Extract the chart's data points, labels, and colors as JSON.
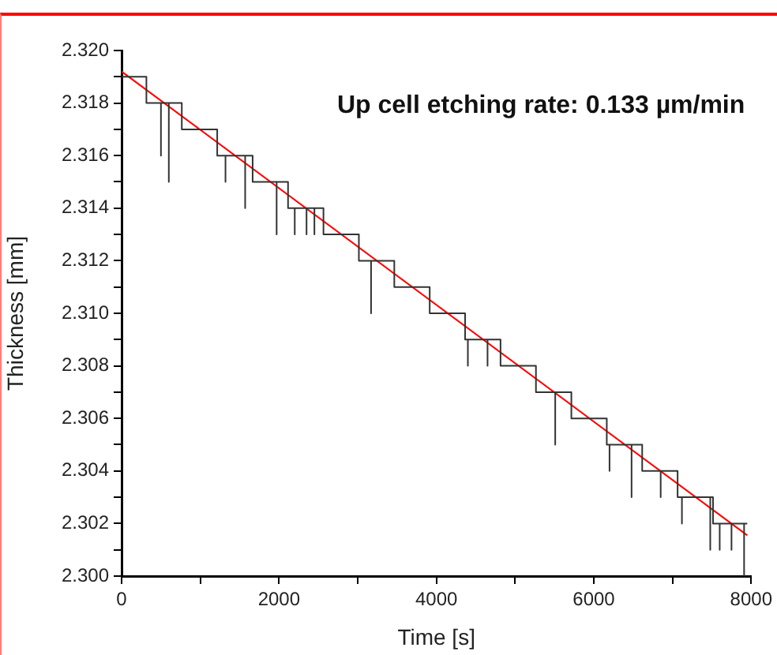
{
  "chart_data": {
    "type": "line",
    "xlabel": "Time [s]",
    "ylabel": "Thickness [mm]",
    "annotations": [
      "Up cell etching rate: 0.133 µm/min"
    ],
    "xlim": [
      0,
      8000
    ],
    "ylim": [
      2.3,
      2.32
    ],
    "xticks": [
      0,
      {
        "value": 1000,
        "label": null
      },
      2000,
      {
        "value": 3000,
        "label": null
      },
      4000,
      {
        "value": 5000,
        "label": null
      },
      6000,
      {
        "value": 7000,
        "label": null
      },
      8000
    ],
    "yticks": [
      {
        "value": 2.3,
        "label": "2.300"
      },
      {
        "value": 2.301,
        "label": null
      },
      {
        "value": 2.302,
        "label": "2.302"
      },
      {
        "value": 2.303,
        "label": null
      },
      {
        "value": 2.304,
        "label": "2.304"
      },
      {
        "value": 2.305,
        "label": null
      },
      {
        "value": 2.306,
        "label": "2.306"
      },
      {
        "value": 2.307,
        "label": null
      },
      {
        "value": 2.308,
        "label": "2.308"
      },
      {
        "value": 2.309,
        "label": null
      },
      {
        "value": 2.31,
        "label": "2.310"
      },
      {
        "value": 2.311,
        "label": null
      },
      {
        "value": 2.312,
        "label": "2.312"
      },
      {
        "value": 2.313,
        "label": null
      },
      {
        "value": 2.314,
        "label": "2.314"
      },
      {
        "value": 2.315,
        "label": null
      },
      {
        "value": 2.316,
        "label": "2.316"
      },
      {
        "value": 2.317,
        "label": null
      },
      {
        "value": 2.318,
        "label": "2.318"
      },
      {
        "value": 2.319,
        "label": null
      },
      {
        "value": 2.32,
        "label": "2.320"
      }
    ],
    "grid": false,
    "legend": false,
    "marker": "none",
    "line_style": "solid",
    "series": [
      {
        "color": "#333333",
        "x": [
          0,
          315,
          315,
          500,
          500,
          500,
          600,
          600,
          600,
          765,
          765,
          1215,
          1215,
          1320,
          1320,
          1320,
          1570,
          1570,
          1570,
          1665,
          1665,
          1970,
          1970,
          1970,
          2115,
          2115,
          2200,
          2200,
          2200,
          2350,
          2350,
          2350,
          2450,
          2450,
          2450,
          2565,
          2565,
          3015,
          3015,
          3170,
          3170,
          3170,
          3465,
          3465,
          3915,
          3915,
          4365,
          4365,
          4400,
          4400,
          4400,
          4650,
          4650,
          4650,
          4815,
          4815,
          5265,
          5265,
          5510,
          5510,
          5510,
          5715,
          5715,
          6165,
          6165,
          6200,
          6200,
          6200,
          6480,
          6480,
          6480,
          6615,
          6615,
          6850,
          6850,
          6850,
          7065,
          7065,
          7120,
          7120,
          7120,
          7480,
          7480,
          7480,
          7515,
          7515,
          7600,
          7600,
          7600,
          7750,
          7750,
          7750,
          7910,
          7910,
          7910,
          7950
        ],
        "values": [
          2.319,
          2.319,
          2.318,
          2.318,
          2.316,
          2.318,
          2.318,
          2.315,
          2.318,
          2.318,
          2.317,
          2.317,
          2.316,
          2.316,
          2.315,
          2.316,
          2.316,
          2.314,
          2.316,
          2.316,
          2.315,
          2.315,
          2.313,
          2.315,
          2.315,
          2.314,
          2.314,
          2.313,
          2.314,
          2.314,
          2.313,
          2.314,
          2.314,
          2.313,
          2.314,
          2.314,
          2.313,
          2.313,
          2.312,
          2.312,
          2.31,
          2.312,
          2.312,
          2.311,
          2.311,
          2.31,
          2.31,
          2.309,
          2.309,
          2.308,
          2.309,
          2.309,
          2.308,
          2.309,
          2.309,
          2.308,
          2.308,
          2.307,
          2.307,
          2.305,
          2.307,
          2.307,
          2.306,
          2.306,
          2.305,
          2.305,
          2.304,
          2.305,
          2.305,
          2.303,
          2.305,
          2.305,
          2.304,
          2.304,
          2.303,
          2.304,
          2.304,
          2.303,
          2.303,
          2.302,
          2.303,
          2.303,
          2.301,
          2.303,
          2.303,
          2.302,
          2.302,
          2.301,
          2.302,
          2.302,
          2.301,
          2.302,
          2.302,
          2.3,
          2.302,
          2.302
        ]
      },
      {
        "color": "#ff0000",
        "x": [
          0,
          7950
        ],
        "values": [
          2.3192,
          2.30155
        ]
      }
    ]
  }
}
